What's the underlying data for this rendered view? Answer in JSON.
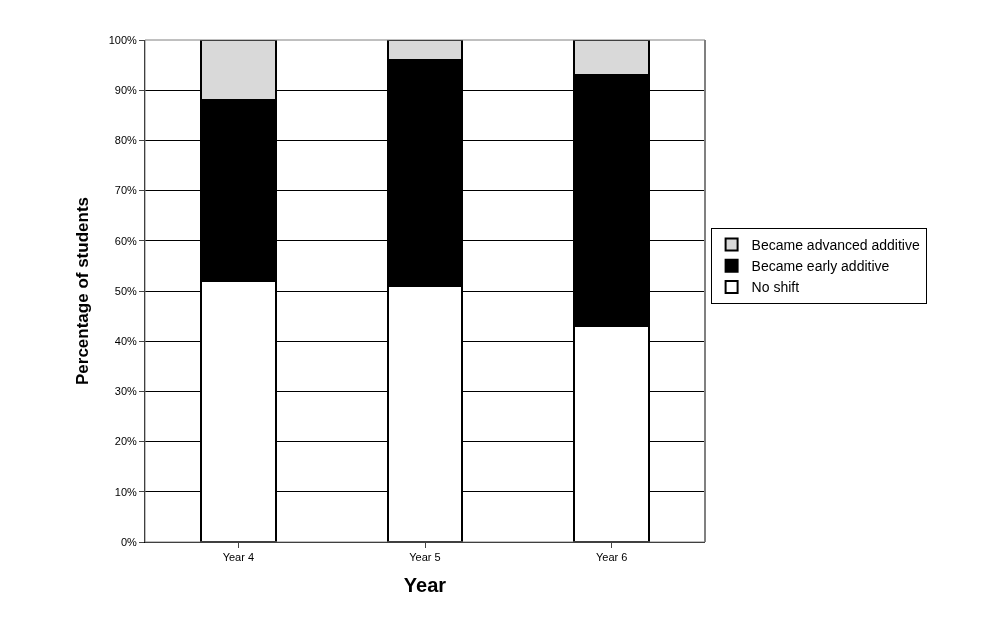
{
  "chart_data": {
    "type": "bar",
    "stacked": true,
    "xlabel": "Year",
    "ylabel": "Percentage of students",
    "categories": [
      "Year 4",
      "Year 5",
      "Year 6"
    ],
    "series": [
      {
        "name": "No shift",
        "color": "#ffffff",
        "values": [
          52,
          51,
          43
        ]
      },
      {
        "name": "Became early additive",
        "color": "#000000",
        "values": [
          36,
          45,
          50
        ]
      },
      {
        "name": "Became advanced additive",
        "color": "#d9d9d9",
        "values": [
          12,
          4,
          7
        ]
      }
    ],
    "ylim": [
      0,
      100
    ],
    "yticks": [
      {
        "value": 0,
        "label": "0%"
      },
      {
        "value": 10,
        "label": "10%"
      },
      {
        "value": 20,
        "label": "20%"
      },
      {
        "value": 30,
        "label": "30%"
      },
      {
        "value": 40,
        "label": "40%"
      },
      {
        "value": 50,
        "label": "50%"
      },
      {
        "value": 60,
        "label": "60%"
      },
      {
        "value": 70,
        "label": "70%"
      },
      {
        "value": 80,
        "label": "80%"
      },
      {
        "value": 90,
        "label": "90%"
      },
      {
        "value": 100,
        "label": "100%"
      }
    ],
    "grid": "y",
    "legend": "right"
  }
}
